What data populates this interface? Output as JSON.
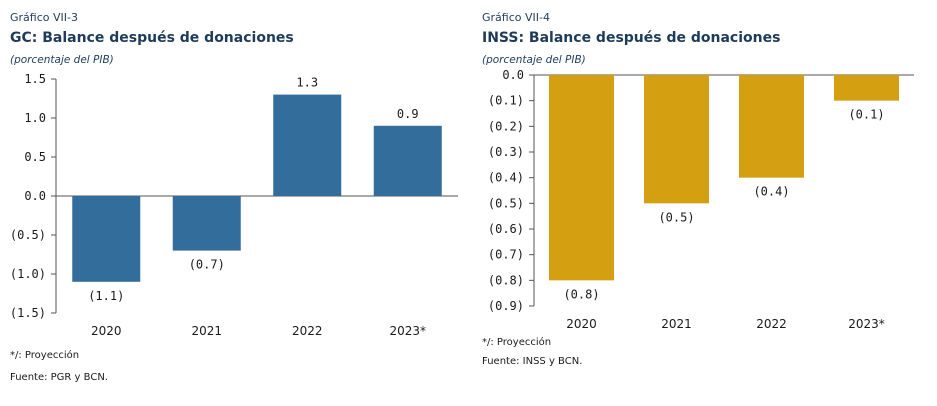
{
  "chart_data": [
    {
      "type": "bar",
      "figure_label": "Gráfico VII-3",
      "title": "GC: Balance después de donaciones",
      "subtitle": "(porcentaje del PIB)",
      "categories": [
        "2020",
        "2021",
        "2022",
        "2023*"
      ],
      "values": [
        -1.1,
        -0.7,
        1.3,
        0.9
      ],
      "data_labels": [
        "(1.1)",
        "(0.7)",
        "1.3",
        "0.9"
      ],
      "y_ticks": [
        1.5,
        1.0,
        0.5,
        0.0,
        -0.5,
        -1.0,
        -1.5
      ],
      "y_tick_labels": [
        "1.5",
        "1.0",
        "0.5",
        "0.0",
        "(0.5)",
        "(1.0)",
        "(1.5)"
      ],
      "ylim": [
        -1.5,
        1.5
      ],
      "grid": false,
      "color": "#336d9c",
      "notes": [
        "*/: Proyección",
        "Fuente: PGR y BCN."
      ]
    },
    {
      "type": "bar",
      "figure_label": "Gráfico VII-4",
      "title": "INSS: Balance después de donaciones",
      "subtitle": "(porcentaje del PIB)",
      "categories": [
        "2020",
        "2021",
        "2022",
        "2023*"
      ],
      "values": [
        -0.8,
        -0.5,
        -0.4,
        -0.1
      ],
      "data_labels": [
        "(0.8)",
        "(0.5)",
        "(0.4)",
        "(0.1)"
      ],
      "y_ticks": [
        0.0,
        -0.1,
        -0.2,
        -0.3,
        -0.4,
        -0.5,
        -0.6,
        -0.7,
        -0.8,
        -0.9
      ],
      "y_tick_labels": [
        "0.0",
        "(0.1)",
        "(0.2)",
        "(0.3)",
        "(0.4)",
        "(0.5)",
        "(0.6)",
        "(0.7)",
        "(0.8)",
        "(0.9)"
      ],
      "ylim": [
        -0.9,
        0.0
      ],
      "grid": false,
      "color": "#d4a012",
      "notes": [
        "*/: Proyección",
        "Fuente: INSS y BCN."
      ]
    }
  ]
}
